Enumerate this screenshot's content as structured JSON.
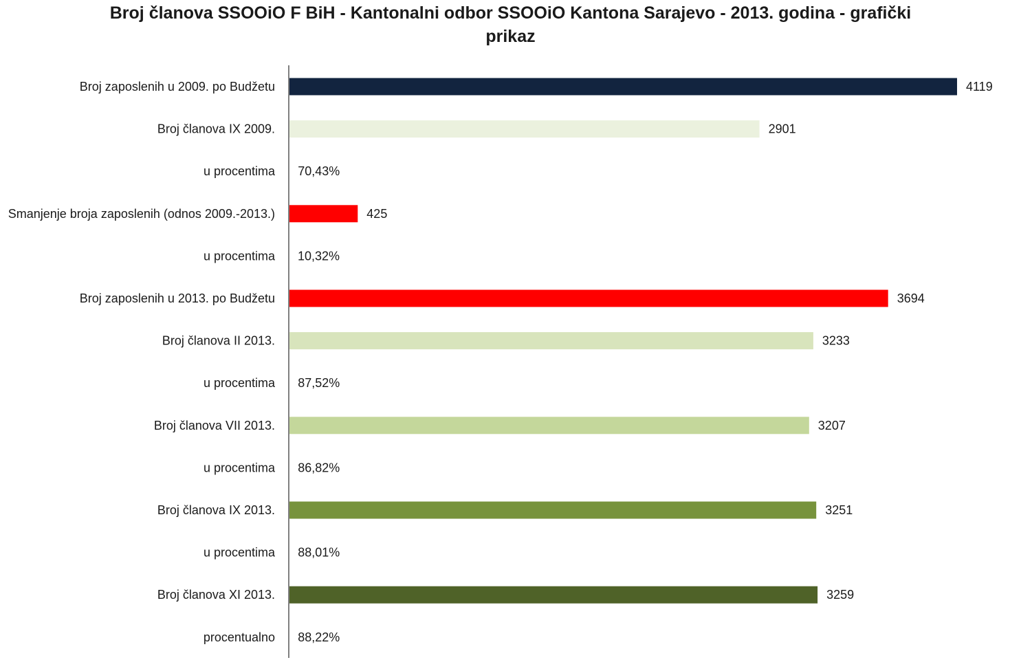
{
  "chart_data": {
    "type": "bar",
    "orientation": "horizontal",
    "title": "Broj članova SSOOiO F BiH - Kantonalni odbor SSOOiO Kantona Sarajevo - 2013. godina - grafički prikaz",
    "xlabel": "",
    "ylabel": "",
    "xlim": [
      0,
      4119
    ],
    "grid": false,
    "legend": "none",
    "categories": [
      "Broj zaposlenih u 2009. po Budžetu",
      "Broj članova IX 2009.",
      "u procentima",
      "Smanjenje broja zaposlenih (odnos 2009.-2013.)",
      "u procentima",
      "Broj zaposlenih u 2013. po Budžetu",
      "Broj članova II 2013.",
      "u procentima",
      "Broj članova VII 2013.",
      "u procentima",
      "Broj članova IX 2013.",
      "u procentima",
      "Broj članova XI 2013.",
      "procentualno"
    ],
    "values": [
      4119,
      2901,
      0.7043,
      425,
      0.1032,
      3694,
      3233,
      0.8752,
      3207,
      0.8682,
      3251,
      0.8801,
      3259,
      0.8822
    ],
    "data_labels": [
      "4119",
      "2901",
      "70,43%",
      "425",
      "10,32%",
      "3694",
      "3233",
      "87,52%",
      "3207",
      "86,82%",
      "3251",
      "88,01%",
      "3259",
      "88,22%"
    ],
    "colors": [
      "#12243f",
      "#ebf1de",
      "#ffffff",
      "#ff0000",
      "#ffffff",
      "#ff0000",
      "#d8e4bc",
      "#ffffff",
      "#c4d79b",
      "#ffffff",
      "#77933c",
      "#ffffff",
      "#4f6228",
      "#ffffff"
    ],
    "axis_color": "#808080"
  }
}
